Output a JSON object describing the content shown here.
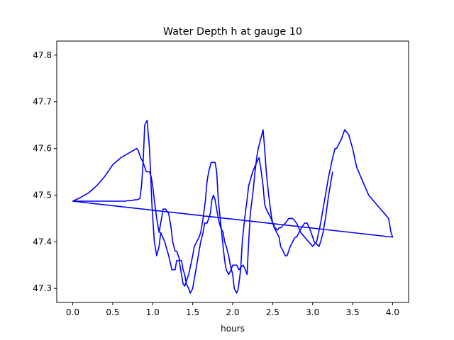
{
  "chart_data": {
    "type": "line",
    "title": "Water Depth h at gauge 10",
    "xlabel": "hours",
    "ylabel": "",
    "xlim": [
      -0.2,
      4.2
    ],
    "ylim": [
      47.27,
      47.83
    ],
    "x_ticks": [
      0.0,
      0.5,
      1.0,
      1.5,
      2.0,
      2.5,
      3.0,
      3.5,
      4.0
    ],
    "x_tick_labels": [
      "0.0",
      "0.5",
      "1.0",
      "1.5",
      "2.0",
      "2.5",
      "3.0",
      "3.5",
      "4.0"
    ],
    "y_ticks": [
      47.3,
      47.4,
      47.5,
      47.6,
      47.7,
      47.8
    ],
    "y_tick_labels": [
      "47.3",
      "47.4",
      "47.5",
      "47.6",
      "47.7",
      "47.8"
    ],
    "grid": false,
    "legend": false,
    "series": [
      {
        "color": "#0000ff",
        "x": [
          0.0,
          0.08,
          0.16,
          0.24,
          0.3,
          0.34,
          0.38,
          0.42,
          0.45,
          0.47,
          0.5,
          0.53,
          0.55,
          0.57,
          0.6,
          0.63,
          0.66,
          0.68,
          0.7,
          0.72,
          0.75,
          0.78,
          0.8,
          0.82,
          0.84,
          0.86,
          0.88,
          0.9,
          0.93,
          0.96,
          0.99,
          1.02,
          1.05,
          1.08,
          1.1,
          1.15,
          1.2,
          1.24,
          1.28,
          1.3,
          1.33,
          1.36,
          1.38,
          1.4,
          1.45,
          1.5,
          1.52,
          1.55,
          1.58,
          1.6,
          1.63,
          1.66,
          1.68,
          1.7,
          1.73,
          1.75,
          1.78,
          1.8,
          1.82,
          1.85,
          1.88,
          1.9,
          1.92,
          1.95,
          1.98,
          2.0,
          2.05,
          2.08,
          2.1,
          2.13,
          2.16,
          2.18,
          2.2,
          2.22,
          2.25,
          2.28,
          2.3,
          2.32,
          2.35,
          2.38,
          2.4,
          2.42,
          2.45,
          2.48,
          2.5,
          2.53,
          2.56,
          2.58,
          2.6,
          2.63,
          2.66,
          2.7,
          2.75,
          2.8,
          2.85,
          2.9,
          2.95,
          3.0,
          3.05,
          3.1,
          3.15,
          3.2,
          3.25,
          3.28,
          3.3,
          3.33,
          3.36,
          3.4,
          3.45,
          3.5,
          3.55,
          3.6,
          3.65,
          3.7,
          3.75,
          3.8,
          3.85,
          3.9,
          3.95,
          3.98,
          4.0,
          0.0,
          0.1,
          0.2,
          0.3,
          0.4,
          0.5,
          0.6,
          0.7,
          0.8,
          0.82,
          0.85,
          0.88,
          0.9,
          0.92,
          0.94,
          0.96,
          0.98,
          1.0,
          1.02,
          1.05,
          1.08,
          1.1,
          1.13,
          1.16,
          1.2,
          1.23,
          1.25,
          1.28,
          1.3,
          1.32,
          1.34,
          1.36,
          1.38,
          1.4,
          1.42,
          1.45,
          1.47,
          1.5,
          1.53,
          1.56,
          1.58,
          1.6,
          1.63,
          1.65,
          1.68,
          1.7,
          1.72,
          1.74,
          1.76,
          1.78,
          1.8,
          1.82,
          1.85,
          1.88,
          1.9,
          1.92,
          1.95,
          1.97,
          2.0,
          2.02,
          2.05,
          2.07,
          2.1,
          2.12,
          2.15,
          2.18,
          2.2,
          2.25,
          2.3,
          2.33,
          2.35,
          2.38,
          2.4,
          2.42,
          2.45,
          2.48,
          2.5,
          2.52,
          2.55,
          2.58,
          2.6,
          2.63,
          2.66,
          2.68,
          2.7,
          2.72,
          2.75,
          2.78,
          2.8,
          2.83,
          2.86,
          2.9,
          2.93,
          2.96,
          2.98,
          3.0,
          3.02,
          3.05,
          3.08,
          3.1,
          3.13,
          3.16,
          3.2,
          3.25
        ],
        "y": [
          47.487,
          47.487,
          47.487,
          47.487,
          47.487,
          47.487,
          47.487,
          47.487,
          47.487,
          47.487,
          47.487,
          47.487,
          47.487,
          47.487,
          47.487,
          47.487,
          47.487,
          47.488,
          47.488,
          47.488,
          47.489,
          47.49,
          47.49,
          47.491,
          47.493,
          47.52,
          47.57,
          47.65,
          47.66,
          47.6,
          47.48,
          47.4,
          47.37,
          47.39,
          47.42,
          47.4,
          47.37,
          47.34,
          47.34,
          47.36,
          47.36,
          47.33,
          47.31,
          47.305,
          47.33,
          47.37,
          47.39,
          47.4,
          47.41,
          47.42,
          47.45,
          47.49,
          47.53,
          47.55,
          47.57,
          47.57,
          47.57,
          47.55,
          47.49,
          47.44,
          47.39,
          47.36,
          47.34,
          47.33,
          47.34,
          47.35,
          47.35,
          47.34,
          47.345,
          47.35,
          47.34,
          47.33,
          47.4,
          47.46,
          47.5,
          47.55,
          47.58,
          47.6,
          47.62,
          47.64,
          47.6,
          47.55,
          47.5,
          47.46,
          47.44,
          47.43,
          47.425,
          47.43,
          47.43,
          47.435,
          47.44,
          47.45,
          47.45,
          47.44,
          47.42,
          47.41,
          47.4,
          47.39,
          47.4,
          47.44,
          47.49,
          47.54,
          47.58,
          47.6,
          47.6,
          47.61,
          47.62,
          47.64,
          47.63,
          47.6,
          47.56,
          47.54,
          47.52,
          47.5,
          47.49,
          47.48,
          47.47,
          47.46,
          47.45,
          47.42,
          47.41,
          47.487,
          47.495,
          47.505,
          47.52,
          47.54,
          47.565,
          47.58,
          47.59,
          47.6,
          47.595,
          47.58,
          47.57,
          47.56,
          47.55,
          47.55,
          47.55,
          47.54,
          47.52,
          47.49,
          47.45,
          47.42,
          47.44,
          47.47,
          47.47,
          47.46,
          47.43,
          47.4,
          47.38,
          47.38,
          47.37,
          47.36,
          47.36,
          47.34,
          47.33,
          47.31,
          47.3,
          47.29,
          47.3,
          47.33,
          47.36,
          47.38,
          47.4,
          47.42,
          47.44,
          47.44,
          47.45,
          47.46,
          47.49,
          47.5,
          47.49,
          47.47,
          47.45,
          47.43,
          47.42,
          47.4,
          47.39,
          47.37,
          47.35,
          47.33,
          47.3,
          47.29,
          47.3,
          47.34,
          47.4,
          47.45,
          47.49,
          47.52,
          47.55,
          47.57,
          47.58,
          47.56,
          47.52,
          47.48,
          47.47,
          47.46,
          47.45,
          47.44,
          47.43,
          47.42,
          47.41,
          47.39,
          47.38,
          47.37,
          47.37,
          47.38,
          47.39,
          47.4,
          47.41,
          47.41,
          47.42,
          47.43,
          47.44,
          47.44,
          47.43,
          47.42,
          47.41,
          47.4,
          47.395,
          47.39,
          47.4,
          47.42,
          47.45,
          47.5,
          47.55
        ]
      }
    ]
  }
}
